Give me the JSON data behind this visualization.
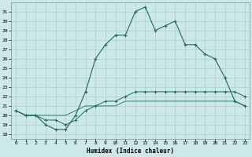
{
  "xlabel": "Humidex (Indice chaleur)",
  "x_ticks": [
    0,
    1,
    2,
    3,
    4,
    5,
    6,
    7,
    8,
    9,
    10,
    11,
    12,
    13,
    14,
    15,
    16,
    17,
    18,
    19,
    20,
    21,
    22,
    23
  ],
  "y_ticks": [
    18,
    19,
    20,
    21,
    22,
    23,
    24,
    25,
    26,
    27,
    28,
    29,
    30,
    31
  ],
  "xlim": [
    -0.5,
    23.5
  ],
  "ylim": [
    17.5,
    32.0
  ],
  "background_color": "#cce8e8",
  "grid_color": "#aacfcf",
  "line_color": "#1a6b5a",
  "line1": [
    20.5,
    20.0,
    20.0,
    19.0,
    18.5,
    18.5,
    20.0,
    22.5,
    26.0,
    27.5,
    28.5,
    28.5,
    31.0,
    31.5,
    29.0,
    29.5,
    30.0,
    27.5,
    27.5,
    26.5,
    26.0,
    24.0,
    21.5,
    21.0
  ],
  "line2": [
    20.5,
    20.0,
    20.0,
    19.5,
    19.5,
    19.0,
    19.5,
    20.5,
    21.0,
    21.5,
    21.5,
    22.0,
    22.5,
    22.5,
    22.5,
    22.5,
    22.5,
    22.5,
    22.5,
    22.5,
    22.5,
    22.5,
    22.5,
    22.0
  ],
  "line3": [
    20.5,
    20.0,
    20.0,
    20.0,
    20.0,
    20.0,
    20.5,
    21.0,
    21.0,
    21.0,
    21.0,
    21.5,
    21.5,
    21.5,
    21.5,
    21.5,
    21.5,
    21.5,
    21.5,
    21.5,
    21.5,
    21.5,
    21.5,
    21.0
  ]
}
